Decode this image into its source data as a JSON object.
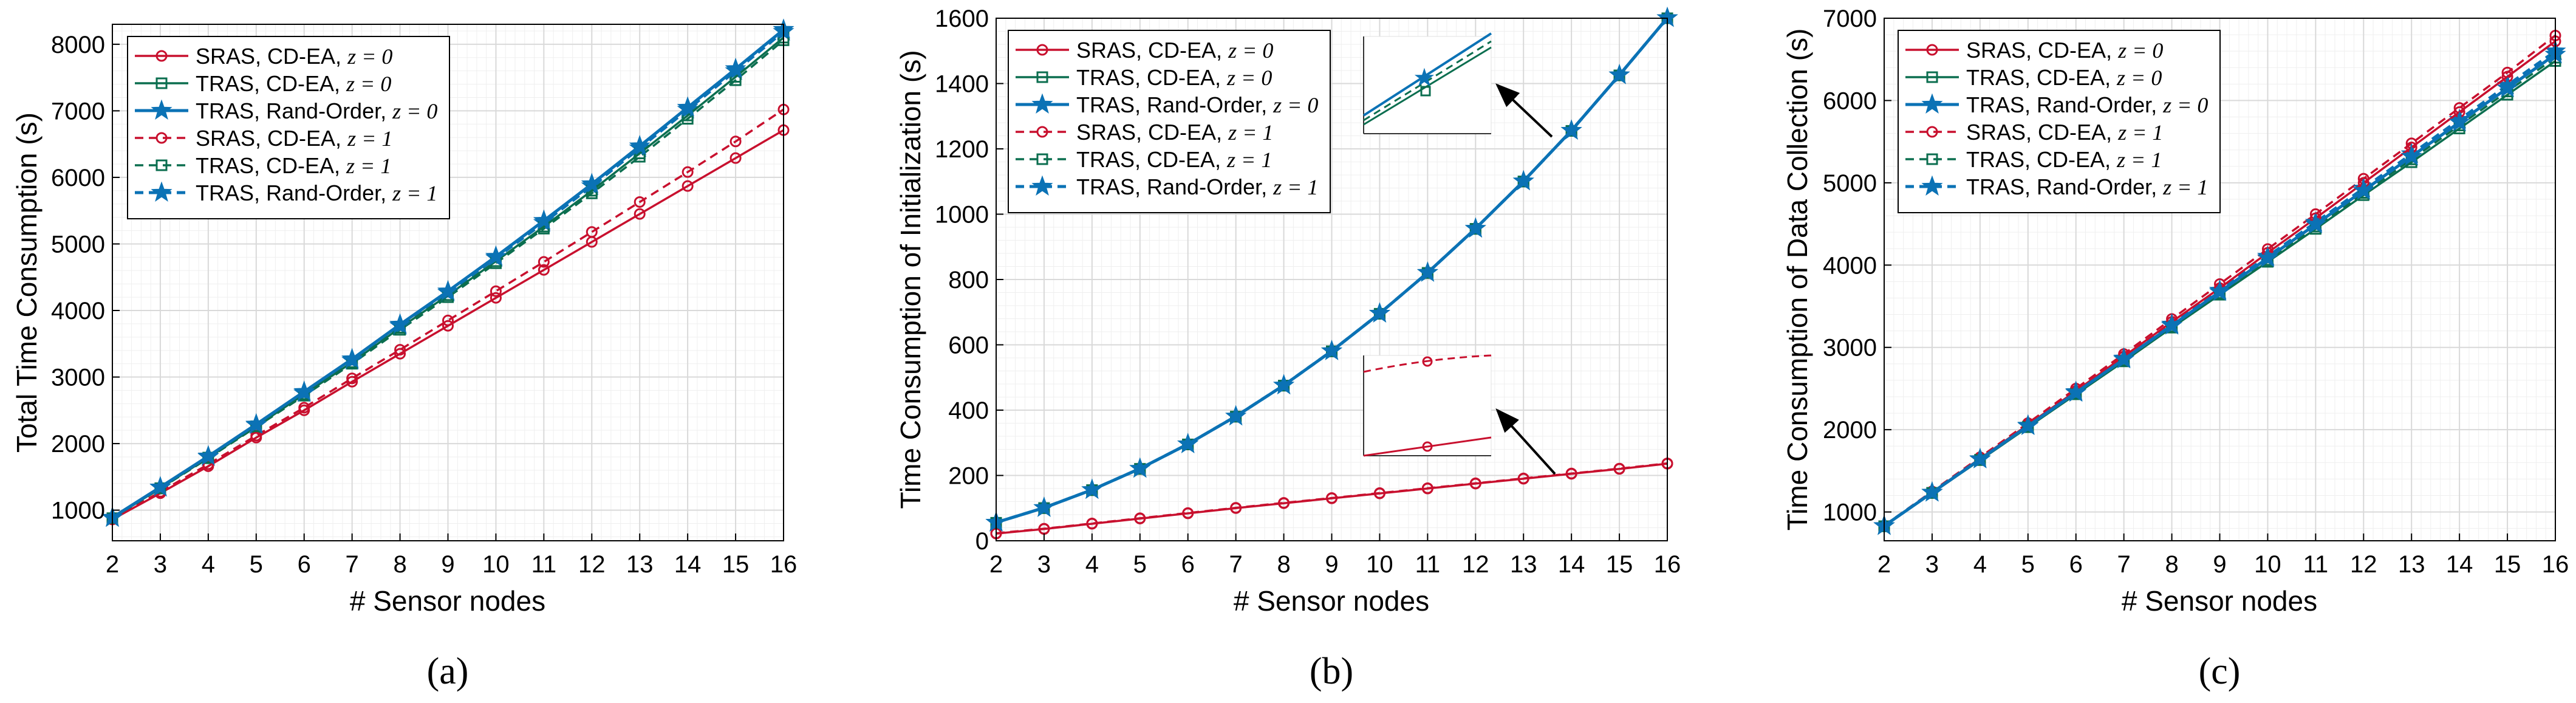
{
  "colors": {
    "sras": "#C8102E",
    "tras_cdea": "#0B6E4F",
    "tras_rand": "#0B72B5",
    "grid_major": "#d9d9d9",
    "grid_minor": "#efefef",
    "arrow": "#000000"
  },
  "legend_entries": [
    {
      "label": "SRAS, CD-EA, ",
      "z": "z = 0",
      "color_key": "sras",
      "dashed": false,
      "marker": "circle"
    },
    {
      "label": "TRAS, CD-EA, ",
      "z": "z = 0",
      "color_key": "tras_cdea",
      "dashed": false,
      "marker": "square"
    },
    {
      "label": "TRAS, Rand-Order, ",
      "z": "z = 0",
      "color_key": "tras_rand",
      "dashed": false,
      "marker": "star"
    },
    {
      "label": "SRAS, CD-EA, ",
      "z": "z = 1",
      "color_key": "sras",
      "dashed": true,
      "marker": "circle"
    },
    {
      "label": "TRAS, CD-EA, ",
      "z": "z = 1",
      "color_key": "tras_cdea",
      "dashed": true,
      "marker": "square"
    },
    {
      "label": "TRAS, Rand-Order, ",
      "z": "z = 1",
      "color_key": "tras_rand",
      "dashed": true,
      "marker": "star"
    }
  ],
  "chart_data": [
    {
      "id": "a",
      "type": "line",
      "caption": "(a)",
      "title": "",
      "xlabel": "# Sensor nodes",
      "ylabel": "Total Time Consumption (s)",
      "x": [
        2,
        3,
        4,
        5,
        6,
        7,
        8,
        9,
        10,
        11,
        12,
        13,
        14,
        15,
        16
      ],
      "xlim": [
        2,
        16
      ],
      "ylim": [
        540,
        8300
      ],
      "yticks": [
        1000,
        2000,
        3000,
        4000,
        5000,
        6000,
        7000,
        8000
      ],
      "grid": true,
      "legend": "top-left",
      "series": [
        {
          "name": "SRAS, CD-EA, z = 0",
          "legend_index": 0,
          "values": [
            860,
            1255,
            1660,
            2090,
            2500,
            2930,
            3350,
            3770,
            4190,
            4610,
            5030,
            5450,
            5870,
            6290,
            6710
          ]
        },
        {
          "name": "TRAS, CD-EA, z = 0",
          "legend_index": 1,
          "values": [
            880,
            1330,
            1790,
            2260,
            2740,
            3220,
            3740,
            4230,
            4740,
            5260,
            5800,
            6360,
            6930,
            7510,
            8100
          ]
        },
        {
          "name": "TRAS, Rand-Order, z = 0",
          "legend_index": 2,
          "values": [
            890,
            1345,
            1810,
            2290,
            2780,
            3270,
            3790,
            4290,
            4810,
            5350,
            5900,
            6470,
            7050,
            7630,
            8220
          ]
        },
        {
          "name": "SRAS, CD-EA, z = 1",
          "legend_index": 3,
          "values": [
            870,
            1275,
            1690,
            2120,
            2540,
            2980,
            3410,
            3850,
            4290,
            4730,
            5180,
            5630,
            6080,
            6540,
            7020
          ]
        },
        {
          "name": "TRAS, CD-EA, z = 1",
          "legend_index": 4,
          "values": [
            875,
            1325,
            1780,
            2250,
            2720,
            3200,
            3710,
            4200,
            4710,
            5230,
            5760,
            6310,
            6880,
            7460,
            8060
          ]
        },
        {
          "name": "TRAS, Rand-Order, z = 1",
          "legend_index": 5,
          "values": [
            885,
            1340,
            1800,
            2280,
            2760,
            3250,
            3770,
            4270,
            4790,
            5320,
            5870,
            6440,
            7020,
            7600,
            8190
          ]
        }
      ]
    },
    {
      "id": "b",
      "type": "line",
      "caption": "(b)",
      "title": "",
      "xlabel": "# Sensor nodes",
      "ylabel": "Time Consumption of Initialization (s)",
      "x": [
        2,
        3,
        4,
        5,
        6,
        7,
        8,
        9,
        10,
        11,
        12,
        13,
        14,
        15,
        16
      ],
      "xlim": [
        2,
        16
      ],
      "ylim": [
        0,
        1600
      ],
      "yticks": [
        0,
        200,
        400,
        600,
        800,
        1000,
        1200,
        1400,
        1600
      ],
      "grid": true,
      "legend": "top-left",
      "annotations": [
        "zoom inset of rising TRAS curves near x = 14",
        "zoom inset of SRAS curves near x = 14"
      ],
      "series": [
        {
          "name": "SRAS, CD-EA, z = 0",
          "legend_index": 0,
          "values": [
            22,
            36,
            52,
            68,
            84,
            100,
            115,
            130,
            145,
            160,
            175,
            190,
            205,
            220,
            236
          ]
        },
        {
          "name": "TRAS, CD-EA, z = 0",
          "legend_index": 1,
          "values": [
            55,
            100,
            155,
            220,
            295,
            380,
            475,
            580,
            695,
            820,
            955,
            1100,
            1255,
            1425,
            1600
          ]
        },
        {
          "name": "TRAS, Rand-Order, z = 0",
          "legend_index": 2,
          "values": [
            56,
            101,
            156,
            221,
            296,
            381,
            476,
            581,
            696,
            821,
            956,
            1101,
            1256,
            1426,
            1601
          ]
        },
        {
          "name": "SRAS, CD-EA, z = 1",
          "legend_index": 3,
          "values": [
            23,
            37,
            53,
            69,
            85,
            101,
            116,
            131,
            146,
            161,
            176,
            191,
            206,
            221,
            237
          ]
        },
        {
          "name": "TRAS, CD-EA, z = 1",
          "legend_index": 4,
          "values": [
            55,
            100,
            155,
            220,
            295,
            380,
            475,
            580,
            695,
            820,
            955,
            1100,
            1255,
            1425,
            1600
          ]
        },
        {
          "name": "TRAS, Rand-Order, z = 1",
          "legend_index": 5,
          "values": [
            56,
            101,
            156,
            221,
            296,
            381,
            476,
            581,
            696,
            821,
            956,
            1101,
            1256,
            1426,
            1601
          ]
        }
      ]
    },
    {
      "id": "c",
      "type": "line",
      "caption": "(c)",
      "title": "",
      "xlabel": "# Sensor nodes",
      "ylabel": "Time Consumption of Data Collection (s)",
      "x": [
        2,
        3,
        4,
        5,
        6,
        7,
        8,
        9,
        10,
        11,
        12,
        13,
        14,
        15,
        16
      ],
      "xlim": [
        2,
        16
      ],
      "ylim": [
        650,
        7000
      ],
      "yticks": [
        1000,
        2000,
        3000,
        4000,
        5000,
        6000,
        7000
      ],
      "grid": true,
      "legend": "top-left",
      "series": [
        {
          "name": "SRAS, CD-EA, z = 0",
          "legend_index": 0,
          "values": [
            830,
            1240,
            1650,
            2060,
            2470,
            2890,
            3310,
            3720,
            4150,
            4570,
            5000,
            5430,
            5860,
            6290,
            6720
          ]
        },
        {
          "name": "TRAS, CD-EA, z = 0",
          "legend_index": 1,
          "values": [
            825,
            1230,
            1630,
            2030,
            2430,
            2830,
            3240,
            3640,
            4040,
            4440,
            4850,
            5250,
            5660,
            6070,
            6480
          ]
        },
        {
          "name": "TRAS, Rand-Order, z = 0",
          "legend_index": 2,
          "values": [
            830,
            1235,
            1640,
            2045,
            2450,
            2855,
            3265,
            3675,
            4085,
            4495,
            4905,
            5320,
            5735,
            6150,
            6560
          ]
        },
        {
          "name": "SRAS, CD-EA, z = 1",
          "legend_index": 3,
          "values": [
            835,
            1250,
            1665,
            2080,
            2500,
            2920,
            3345,
            3770,
            4195,
            4620,
            5050,
            5480,
            5910,
            6340,
            6790
          ]
        },
        {
          "name": "TRAS, CD-EA, z = 1",
          "legend_index": 4,
          "values": [
            827,
            1233,
            1635,
            2037,
            2440,
            2843,
            3252,
            3658,
            4062,
            4468,
            4877,
            5285,
            5697,
            6110,
            6520
          ]
        },
        {
          "name": "TRAS, Rand-Order, z = 1",
          "legend_index": 5,
          "values": [
            832,
            1238,
            1645,
            2052,
            2460,
            2868,
            3280,
            3692,
            4105,
            4518,
            4932,
            5350,
            5768,
            6185,
            6600
          ]
        }
      ]
    }
  ]
}
